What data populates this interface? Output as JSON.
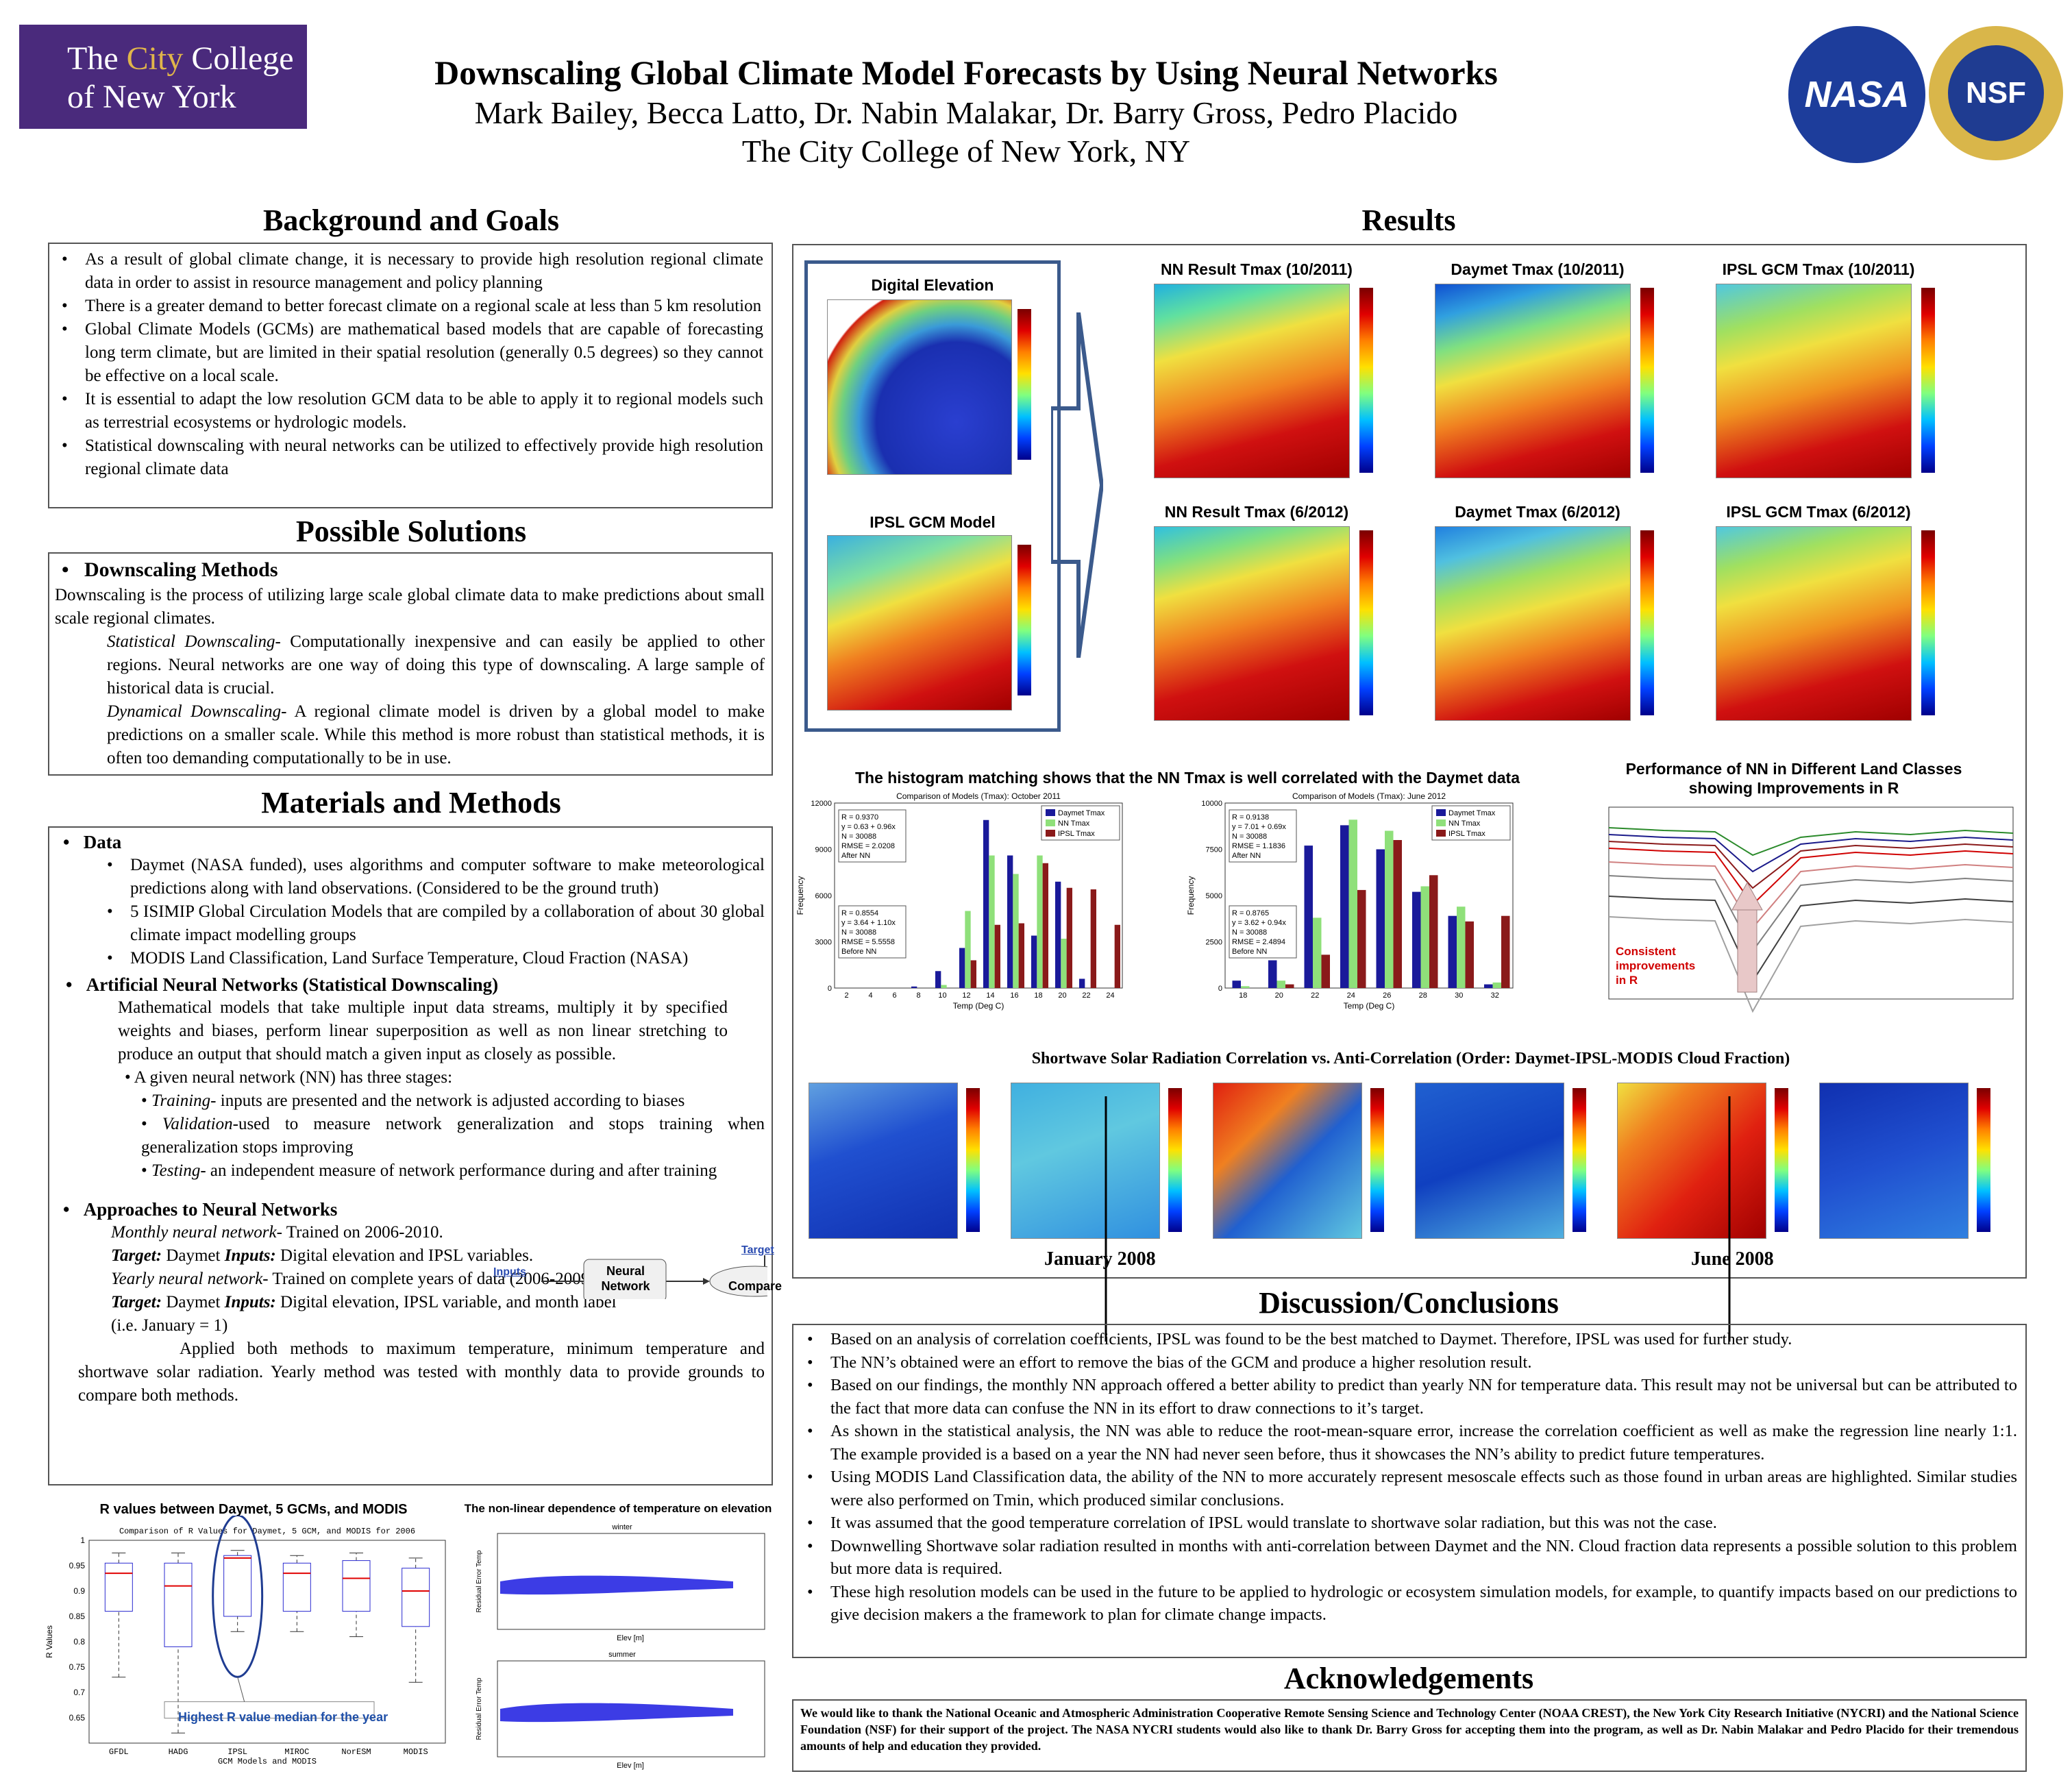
{
  "logo": {
    "line1a": "The ",
    "line1b": "City",
    "line1c": " College",
    "line2": "of New York"
  },
  "header": {
    "title": "Downscaling Global Climate Model Forecasts by Using Neural Networks",
    "authors": "Mark Bailey, Becca Latto, Dr. Nabin Malakar,  Dr. Barry Gross, Pedro Placido",
    "affiliation": "The City College of New York, NY"
  },
  "partner_logos": {
    "nasa": "NASA",
    "nsf": "NSF"
  },
  "background": {
    "heading": "Background and Goals",
    "items": [
      "As a result of global climate change, it is necessary to provide high resolution regional climate data in order to assist in resource management and policy planning",
      "There is a greater demand to better forecast climate on a regional scale at less than 5 km resolution",
      "Global Climate Models (GCMs) are mathematical based models that are capable of forecasting long term climate, but are limited in their spatial resolution (generally  0.5 degrees) so they cannot be effective on a local scale.",
      "It is essential to adapt the low resolution GCM data to be able to apply it to regional models such as terrestrial ecosystems or hydrologic models.",
      "Statistical downscaling with neural networks can be utilized to effectively provide high resolution regional climate data"
    ]
  },
  "solutions": {
    "heading": "Possible Solutions",
    "sub": "Downscaling Methods",
    "intro": "Downscaling is the process of utilizing large scale global climate data to make predictions about small scale regional climates.",
    "stat_label": "Statistical Downscaling",
    "stat_text": "- Computationally inexpensive and can easily be applied to other regions. Neural networks are one way of doing this type of downscaling. A large sample of historical data is crucial.",
    "dyn_label": "Dynamical Downscaling",
    "dyn_text": "- A regional climate model is driven by a global model to make predictions on a smaller scale. While this method is more robust than statistical methods, it is often too demanding computationally to be in use."
  },
  "methods": {
    "heading": "Materials and Methods",
    "data_label": "Data",
    "data_items": [
      "Daymet (NASA funded), uses algorithms and computer software to make meteorological predictions along with land observations. (Considered to be the ground truth)",
      "5 ISIMIP Global Circulation Models that are compiled by a collaboration of about 30 global climate impact modelling groups",
      "MODIS Land Classification, Land Surface Temperature, Cloud Fraction (NASA)"
    ],
    "ann_label": "Artificial Neural Networks (Statistical Downscaling)",
    "ann_text": "Mathematical models that take multiple input data streams, multiply it by specified weights and biases, perform linear  superposition as well as non linear stretching to produce an output  that should match a given input as closely as possible.",
    "stages_intro": "A given neural network (NN) has three stages:",
    "stages": [
      {
        "label": "Training",
        "text": "- inputs are presented and the network is adjusted according to biases"
      },
      {
        "label": "Validation",
        "text": "-used to measure network generalization and stops training when generalization stops improving"
      },
      {
        "label": "Testing",
        "text": "- an independent measure of network performance during and after training"
      }
    ],
    "diagram": {
      "inputs": "Inputs",
      "nn_line1": "Neural",
      "nn_line2": "Network",
      "target": "Target",
      "compare": "Compare"
    },
    "approaches_label": "Approaches to  Neural Networks",
    "monthly_label": "Monthly neural network",
    "monthly_text": "- Trained on 2006-2010.",
    "target_label": "Target:",
    "monthly_target": " Daymet     ",
    "inputs_label": "Inputs:",
    "monthly_inputs": " Digital elevation and IPSL variables.",
    "yearly_label": "Yearly neural network",
    "yearly_text": "- Trained on complete years of data (2006-2009).",
    "yearly_target": " Daymet    ",
    "yearly_inputs": " Digital elevation, IPSL variable, and month label",
    "yearly_note": "(i.e. January = 1)",
    "closing": "Applied both methods to maximum temperature, minimum temperature and shortwave solar radiation. Yearly method was tested with monthly data to provide grounds to compare both methods."
  },
  "rvalues_chart": {
    "caption": "R values between Daymet, 5 GCMs, and MODIS",
    "inner_title": "Comparison of R Values for Daymet, 5 GCM, and MODIS for 2006",
    "annotation": "Highest R value median for the year"
  },
  "nonlinear_chart": {
    "caption": "The non-linear dependence of temperature on elevation",
    "top_label": "winter",
    "bottom_label": "summer",
    "xlabel": "Elev [m]",
    "ylabel": "Residual Error Temp"
  },
  "results": {
    "heading": "Results",
    "left_panels": [
      "Digital Elevation",
      "IPSL GCM Model"
    ],
    "map_titles": [
      "NN Result Tmax (10/2011)",
      "Daymet Tmax (10/2011)",
      "IPSL GCM Tmax (10/2011)",
      "NN Result Tmax (6/2012)",
      "Daymet Tmax (6/2012)",
      "IPSL GCM Tmax (6/2012)"
    ],
    "hist_caption": "The histogram matching shows that the NN Tmax is well correlated with the Daymet data",
    "perf_caption_1": "Performance of NN in Different Land Classes",
    "perf_caption_2": "showing Improvements in R",
    "consistent": [
      "Consistent",
      "improvements",
      "in R"
    ],
    "sw_caption": "Shortwave Solar Radiation Correlation vs. Anti-Correlation (Order: Daymet-IPSL-MODIS Cloud Fraction)",
    "jan": "January 2008",
    "jun": "June 2008"
  },
  "hist1": {
    "title": "Comparison of Models (Tmax): October 2011",
    "legend": [
      "Daymet Tmax",
      "NN Tmax",
      "IPSL Tmax"
    ],
    "colors": [
      "#1a1a9a",
      "#8fe07a",
      "#8a1a1a"
    ],
    "stats_after": [
      "R = 0.9370",
      "y = 0.63 + 0.96x",
      "N = 30088",
      "RMSE = 2.0208",
      "After NN"
    ],
    "stats_before": [
      "R = 0.8554",
      "y = 3.64 + 1.10x",
      "N = 30088",
      "RMSE = 5.5558",
      "Before NN"
    ],
    "xlabel": "Temp (Deg C)",
    "ylabel": "Frequency"
  },
  "hist2": {
    "title": "Comparison of Models (Tmax): June 2012",
    "legend": [
      "Daymet Tmax",
      "NN Tmax",
      "IPSL Tmax"
    ],
    "stats_after": [
      "R = 0.9138",
      "y = 7.01 + 0.69x",
      "N = 30088",
      "RMSE = 1.1836",
      "After NN"
    ],
    "stats_before": [
      "R = 0.8765",
      "y = 3.62 + 0.94x",
      "N = 30088",
      "RMSE = 2.4894",
      "Before NN"
    ],
    "xlabel": "Temp (Deg C)",
    "ylabel": "Frequency"
  },
  "chart_data": [
    {
      "type": "bar",
      "title": "Comparison of Models (Tmax): October 2011",
      "xlabel": "Temp (Deg C)",
      "ylabel": "Frequency",
      "categories": [
        2,
        4,
        6,
        8,
        10,
        12,
        14,
        16,
        18,
        20,
        22,
        24
      ],
      "ylim": [
        0,
        12000
      ],
      "series": [
        {
          "name": "Daymet Tmax",
          "values": [
            0,
            0,
            0,
            100,
            1100,
            2600,
            10900,
            8600,
            3400,
            6900,
            600,
            0
          ]
        },
        {
          "name": "NN Tmax",
          "values": [
            0,
            0,
            0,
            0,
            200,
            5000,
            8600,
            7400,
            8600,
            3200,
            0,
            0
          ]
        },
        {
          "name": "IPSL Tmax",
          "values": [
            0,
            0,
            0,
            0,
            0,
            1800,
            4100,
            4200,
            8100,
            6500,
            6400,
            4100
          ]
        }
      ]
    },
    {
      "type": "bar",
      "title": "Comparison of Models (Tmax): June 2012",
      "xlabel": "Temp (Deg C)",
      "ylabel": "Frequency",
      "categories": [
        18,
        20,
        22,
        24,
        26,
        28,
        30,
        32
      ],
      "ylim": [
        0,
        10000
      ],
      "series": [
        {
          "name": "Daymet Tmax",
          "values": [
            400,
            1500,
            7700,
            8800,
            7500,
            5200,
            3900,
            200
          ]
        },
        {
          "name": "NN Tmax",
          "values": [
            100,
            400,
            3800,
            9100,
            8500,
            5500,
            4400,
            300
          ]
        },
        {
          "name": "IPSL Tmax",
          "values": [
            0,
            200,
            1800,
            5300,
            8000,
            6100,
            3600,
            3900
          ]
        }
      ]
    },
    {
      "type": "box",
      "title": "R values between Daymet, 5 GCMs, and MODIS",
      "xlabel": "GCM Models and MODIS",
      "ylabel": "R Values",
      "ylim": [
        0.6,
        1.0
      ],
      "categories": [
        "GFDL",
        "HADG",
        "IPSL",
        "MIROC",
        "NorESM",
        "MODIS"
      ],
      "median": [
        0.935,
        0.91,
        0.965,
        0.935,
        0.925,
        0.9
      ],
      "q1": [
        0.86,
        0.79,
        0.85,
        0.86,
        0.86,
        0.83
      ],
      "q3": [
        0.955,
        0.955,
        0.97,
        0.955,
        0.96,
        0.945
      ],
      "min": [
        0.73,
        0.62,
        0.82,
        0.82,
        0.81,
        0.72
      ],
      "max": [
        0.975,
        0.975,
        0.98,
        0.97,
        0.975,
        0.965
      ]
    }
  ],
  "colors": {
    "purple": "#4a2a7c",
    "accent_red": "#d00000",
    "box": "#555555"
  },
  "discussion": {
    "heading": "Discussion/Conclusions",
    "items": [
      "Based on an analysis of correlation coefficients, IPSL was found to be the best matched to Daymet. Therefore, IPSL was used for further study.",
      "The NN’s obtained were an effort to remove the bias of the GCM and produce a higher resolution result.",
      "Based on our findings, the monthly NN approach offered a better ability to predict than yearly NN for temperature data. This result may not be universal but can be attributed to the fact that more data can confuse the NN in its effort to draw connections to it’s target.",
      "As shown in the statistical analysis, the NN was able to reduce the root-mean-square error, increase the correlation coefficient as well as make the regression line nearly 1:1. The example provided is a based on a year the NN had never seen before, thus it showcases the NN’s ability to predict future temperatures.",
      "Using MODIS Land Classification data, the ability of the NN to more accurately represent mesoscale effects such as those found in urban areas are highlighted. Similar studies were also performed on Tmin, which produced similar conclusions.",
      "It was assumed that the good temperature correlation of IPSL would translate to shortwave solar radiation, but this was not the case.",
      "Downwelling Shortwave solar radiation resulted in months with anti-correlation between Daymet and the NN. Cloud fraction data represents a possible solution to this problem but more data is required.",
      "These high resolution models can be used in the future to be applied to hydrologic or ecosystem simulation models, for example, to quantify impacts based on our predictions to give decision makers a the framework to plan for climate change impacts."
    ]
  },
  "ack": {
    "heading": "Acknowledgements",
    "text": "We would like to thank the National Oceanic and Atmospheric Administration Cooperative Remote Sensing Science and Technology Center (NOAA CREST), the New York City Research Initiative (NYCRI) and the National Science Foundation (NSF) for their support of the project. The NASA NYCRI students would also like to thank Dr. Barry Gross for accepting them into the program, as well as Dr. Nabin Malakar and Pedro Placido for their tremendous amounts of help and education they provided."
  }
}
